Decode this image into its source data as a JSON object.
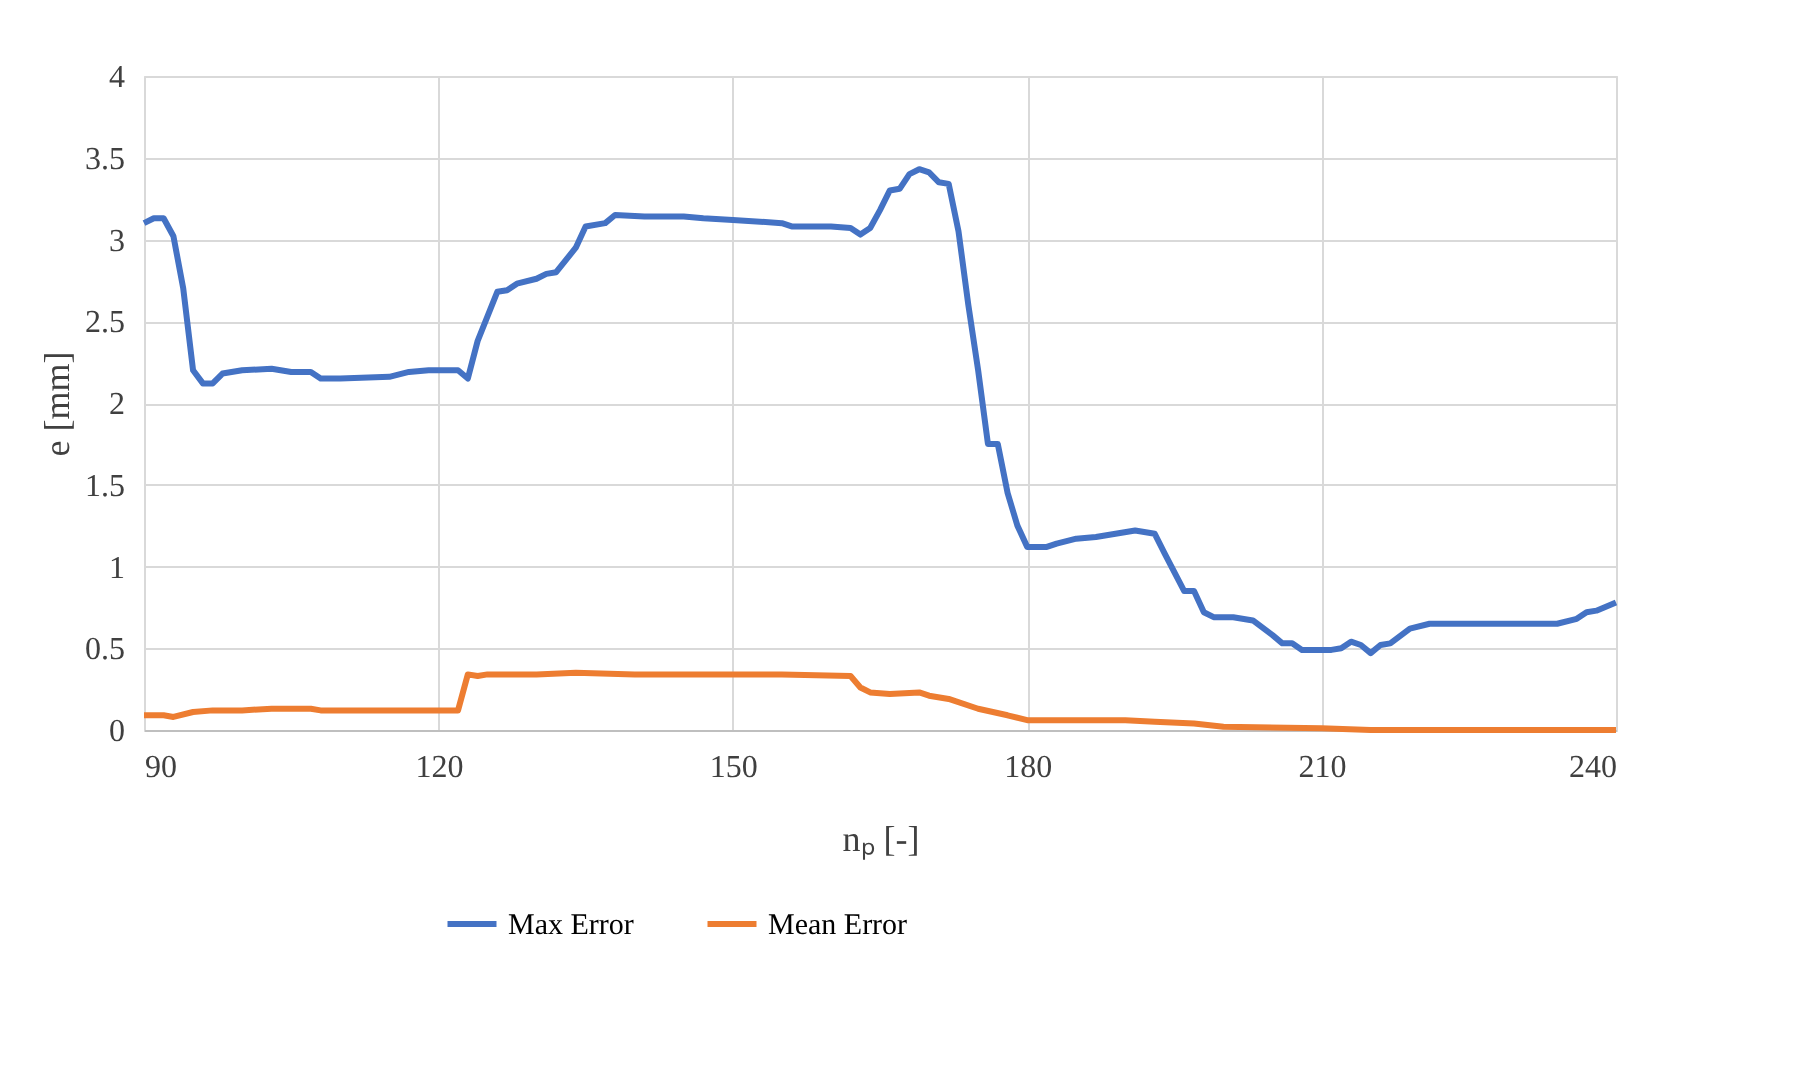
{
  "chart_data": {
    "type": "line",
    "xlabel": "nₚ [-]",
    "ylabel": "e [mm]",
    "xlim": [
      90,
      240
    ],
    "xticks": [
      90,
      120,
      150,
      180,
      210,
      240
    ],
    "ylim": [
      0,
      4
    ],
    "yticks": [
      0,
      0.5,
      1,
      1.5,
      2,
      2.5,
      3,
      3.5,
      4
    ],
    "grid": true,
    "legend": "bottom",
    "marker": "none",
    "line_style": "solid",
    "series": [
      {
        "name": "Max Error",
        "color": "#4472c4",
        "x": [
          90,
          91,
          92,
          93,
          94,
          95,
          96,
          97,
          98,
          100,
          103,
          105,
          107,
          108,
          110,
          115,
          117,
          119,
          122,
          123,
          124,
          126,
          127,
          128,
          130,
          131,
          132,
          134,
          135,
          137,
          138,
          141,
          145,
          147,
          150,
          155,
          156,
          160,
          162,
          163,
          164,
          165,
          166,
          167,
          168,
          169,
          170,
          171,
          172,
          173,
          174,
          175,
          176,
          177,
          178,
          179,
          180,
          182,
          183,
          185,
          187,
          189,
          191,
          193,
          194,
          196,
          197,
          198,
          199,
          201,
          203,
          205,
          206,
          207,
          208,
          211,
          212,
          213,
          214,
          215,
          216,
          217,
          219,
          221,
          225,
          234,
          236,
          237,
          238,
          240
        ],
        "values": [
          3.1,
          3.13,
          3.13,
          3.02,
          2.7,
          2.2,
          2.12,
          2.12,
          2.18,
          2.2,
          2.21,
          2.19,
          2.19,
          2.15,
          2.15,
          2.16,
          2.19,
          2.2,
          2.2,
          2.15,
          2.38,
          2.68,
          2.69,
          2.73,
          2.76,
          2.79,
          2.8,
          2.95,
          3.08,
          3.1,
          3.15,
          3.14,
          3.14,
          3.13,
          3.12,
          3.1,
          3.08,
          3.08,
          3.07,
          3.03,
          3.07,
          3.18,
          3.3,
          3.31,
          3.4,
          3.43,
          3.41,
          3.35,
          3.34,
          3.05,
          2.6,
          2.2,
          1.75,
          1.75,
          1.45,
          1.25,
          1.12,
          1.12,
          1.14,
          1.17,
          1.18,
          1.2,
          1.22,
          1.2,
          1.08,
          0.85,
          0.85,
          0.72,
          0.69,
          0.69,
          0.67,
          0.58,
          0.53,
          0.53,
          0.49,
          0.49,
          0.5,
          0.54,
          0.52,
          0.47,
          0.52,
          0.53,
          0.62,
          0.65,
          0.65,
          0.65,
          0.68,
          0.72,
          0.73,
          0.78
        ]
      },
      {
        "name": "Mean Error",
        "color": "#ed7d31",
        "x": [
          90,
          92,
          93,
          95,
          97,
          100,
          103,
          107,
          108,
          115,
          122,
          123,
          124,
          125,
          130,
          134,
          140,
          150,
          155,
          162,
          163,
          164,
          166,
          169,
          170,
          172,
          175,
          178,
          180,
          190,
          193,
          197,
          200,
          210,
          215,
          235,
          240
        ],
        "values": [
          0.09,
          0.09,
          0.08,
          0.11,
          0.12,
          0.12,
          0.13,
          0.13,
          0.12,
          0.12,
          0.12,
          0.34,
          0.33,
          0.34,
          0.34,
          0.35,
          0.34,
          0.34,
          0.34,
          0.33,
          0.26,
          0.23,
          0.22,
          0.23,
          0.21,
          0.19,
          0.13,
          0.09,
          0.06,
          0.06,
          0.05,
          0.04,
          0.02,
          0.01,
          0.0,
          0.0,
          0.0
        ]
      }
    ]
  }
}
